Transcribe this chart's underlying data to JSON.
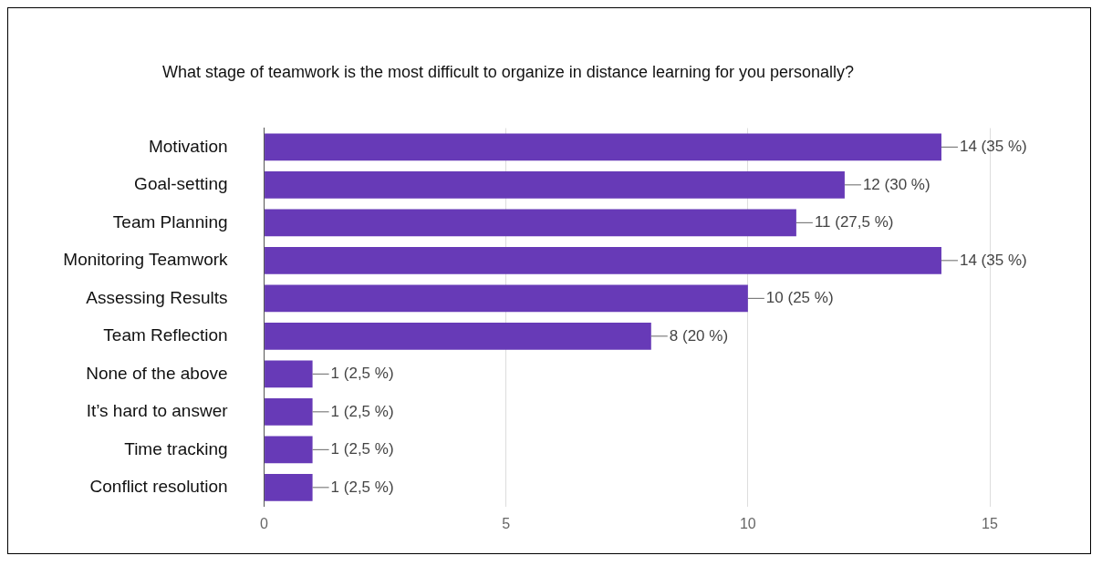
{
  "chart_data": {
    "type": "bar",
    "orientation": "horizontal",
    "title": "What stage of teamwork is the most difficult to organize in distance learning for you personally?",
    "categories": [
      "Motivation",
      "Goal-setting",
      "Team Planning",
      "Monitoring Teamwork",
      "Assessing Results",
      "Team Reflection",
      "None of the above",
      "It’s hard to answer",
      "Time tracking",
      "Conflict resolution"
    ],
    "values": [
      14,
      12,
      11,
      14,
      10,
      8,
      1,
      1,
      1,
      1
    ],
    "value_labels": [
      "14 (35 %)",
      "12 (30 %)",
      "11 (27,5 %)",
      "14 (35 %)",
      "10 (25 %)",
      "8 (20 %)",
      "1 (2,5 %)",
      "1 (2,5 %)",
      "1 (2,5 %)",
      "1 (2,5 %)"
    ],
    "color": "#673ab7",
    "xlim": [
      0,
      15
    ],
    "xticks": [
      0,
      5,
      10,
      15
    ],
    "grid": "x",
    "legend": false
  }
}
